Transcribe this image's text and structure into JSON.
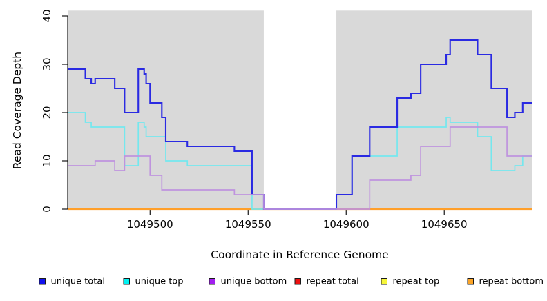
{
  "figure": {
    "background": "#ffffff"
  },
  "chart_data": {
    "type": "line",
    "subtype": "step",
    "title": "",
    "xlabel": "Coordinate in Reference Genome",
    "ylabel": "Read Coverage Depth",
    "xlim": [
      1049458,
      1049695
    ],
    "ylim": [
      0,
      41.1
    ],
    "x_ticks": [
      1049500,
      1049550,
      1049600,
      1049650
    ],
    "y_ticks": [
      0,
      10,
      20,
      30,
      40
    ],
    "grid": false,
    "panel_background": "#d9d9d9",
    "masked_region": {
      "from": 1049558,
      "to": 1049595,
      "fill": "#ffffff"
    },
    "axis_color": "#000000",
    "legend_position": "bottom",
    "draw_order": [
      "repeat total",
      "repeat top",
      "repeat bottom",
      "unique top",
      "unique total",
      "unique bottom"
    ],
    "legend_order": [
      "unique total",
      "unique top",
      "unique bottom",
      "repeat total",
      "repeat top",
      "repeat bottom"
    ],
    "series": [
      {
        "name": "unique total",
        "legend_swatch": "#1111ee",
        "line_color": "#2a2ae2",
        "line_width": 2.1,
        "steps": [
          [
            1049458,
            29
          ],
          [
            1049467,
            27
          ],
          [
            1049470,
            26
          ],
          [
            1049472,
            27
          ],
          [
            1049482,
            25
          ],
          [
            1049487,
            20
          ],
          [
            1049494,
            29
          ],
          [
            1049497,
            28
          ],
          [
            1049498,
            26
          ],
          [
            1049500,
            22
          ],
          [
            1049506,
            19
          ],
          [
            1049508,
            14
          ],
          [
            1049519,
            13
          ],
          [
            1049543,
            12
          ],
          [
            1049552,
            3
          ],
          [
            1049558,
            0
          ],
          [
            1049595,
            3
          ],
          [
            1049603,
            11
          ],
          [
            1049612,
            17
          ],
          [
            1049626,
            23
          ],
          [
            1049633,
            24
          ],
          [
            1049638,
            30
          ],
          [
            1049651,
            32
          ],
          [
            1049653,
            35
          ],
          [
            1049667,
            32
          ],
          [
            1049674,
            25
          ],
          [
            1049682,
            19
          ],
          [
            1049686,
            20
          ],
          [
            1049690,
            22
          ]
        ]
      },
      {
        "name": "unique top",
        "legend_swatch": "#00f2f2",
        "line_color": "#74e7ee",
        "line_width": 1.7,
        "steps": [
          [
            1049458,
            20
          ],
          [
            1049467,
            18
          ],
          [
            1049470,
            17
          ],
          [
            1049487,
            9
          ],
          [
            1049494,
            18
          ],
          [
            1049497,
            17
          ],
          [
            1049498,
            15
          ],
          [
            1049508,
            10
          ],
          [
            1049519,
            9
          ],
          [
            1049552,
            0
          ],
          [
            1049595,
            3
          ],
          [
            1049603,
            11
          ],
          [
            1049626,
            17
          ],
          [
            1049651,
            19
          ],
          [
            1049653,
            18
          ],
          [
            1049667,
            15
          ],
          [
            1049674,
            8
          ],
          [
            1049686,
            9
          ],
          [
            1049690,
            11
          ]
        ]
      },
      {
        "name": "unique bottom",
        "legend_swatch": "#a21ff0",
        "line_color": "#bf93de",
        "line_width": 1.7,
        "steps": [
          [
            1049458,
            9
          ],
          [
            1049472,
            10
          ],
          [
            1049482,
            8
          ],
          [
            1049487,
            11
          ],
          [
            1049500,
            7
          ],
          [
            1049506,
            4
          ],
          [
            1049543,
            3
          ],
          [
            1049558,
            0
          ],
          [
            1049612,
            6
          ],
          [
            1049633,
            7
          ],
          [
            1049638,
            13
          ],
          [
            1049653,
            17
          ],
          [
            1049682,
            11
          ]
        ]
      },
      {
        "name": "repeat total",
        "legend_swatch": "#ee1010",
        "line_color": "#dd1111",
        "line_width": 2,
        "steps": [
          [
            1049458,
            0
          ]
        ]
      },
      {
        "name": "repeat top",
        "legend_swatch": "#f6f63a",
        "line_color": "#f0f000",
        "line_width": 2,
        "steps": [
          [
            1049458,
            0
          ]
        ]
      },
      {
        "name": "repeat bottom",
        "legend_swatch": "#fca426",
        "line_color": "#ff9f2a",
        "line_width": 2.2,
        "steps": [
          [
            1049458,
            0
          ]
        ]
      }
    ]
  }
}
